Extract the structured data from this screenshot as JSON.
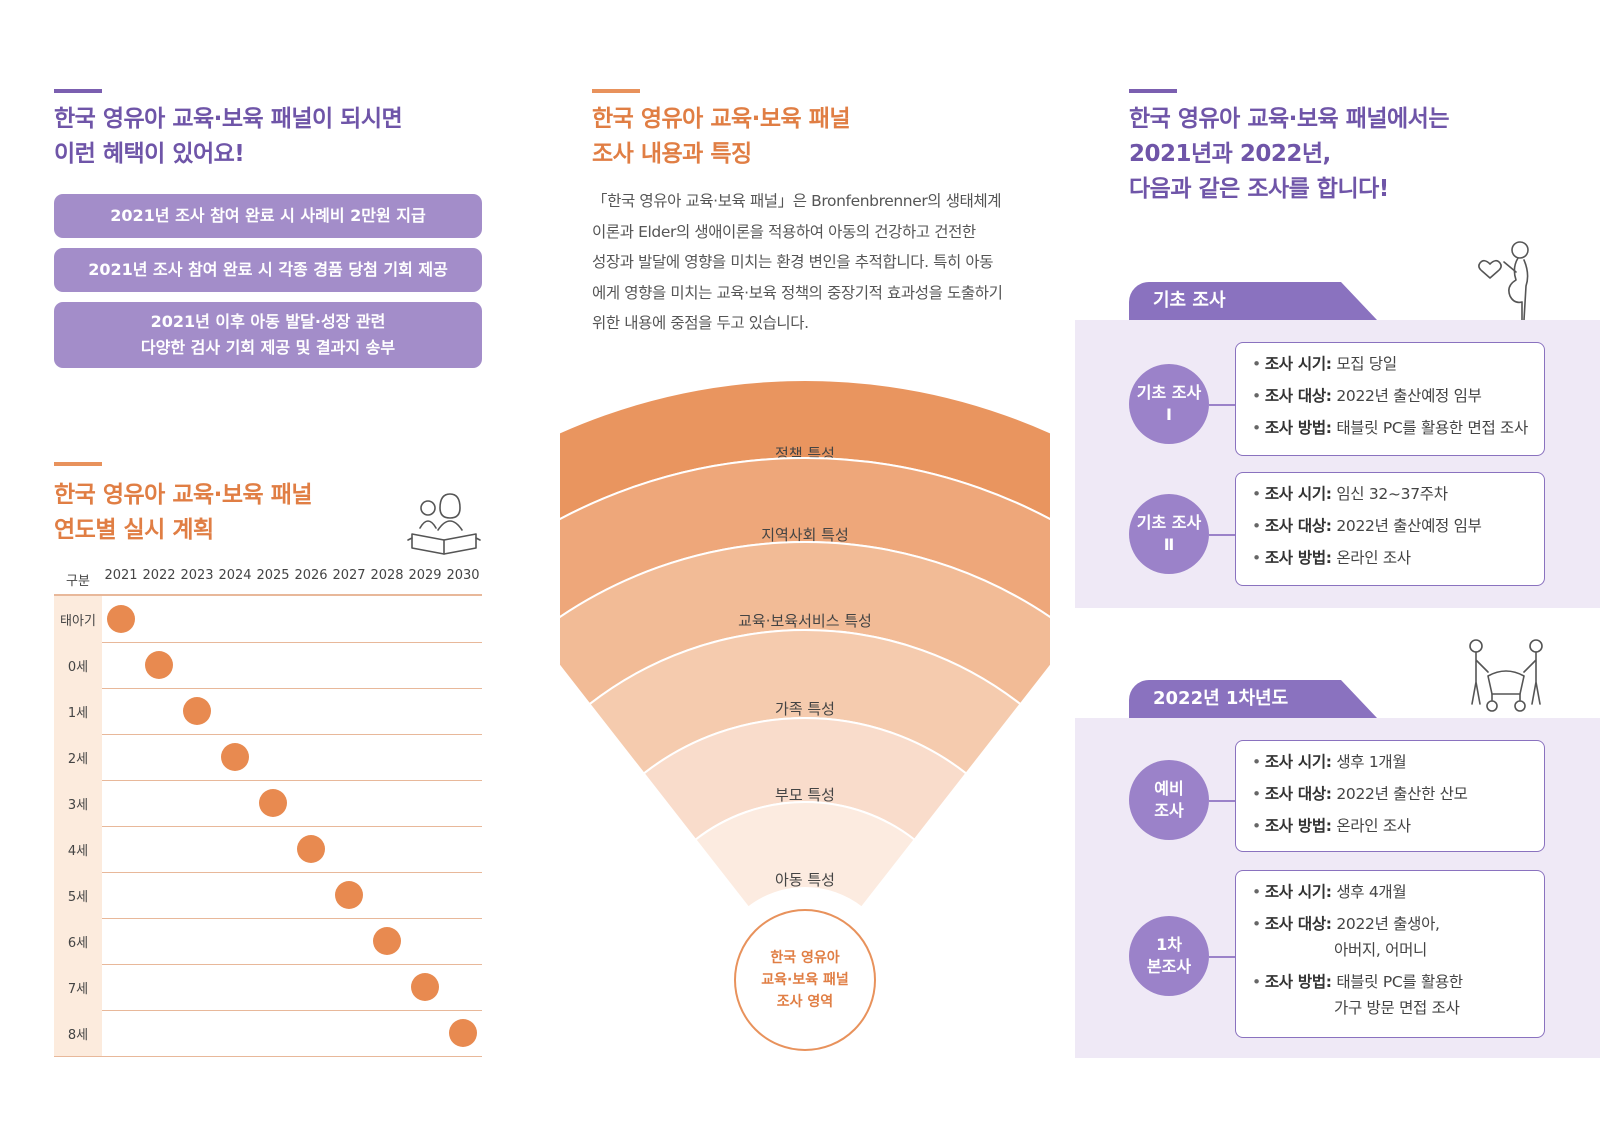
{
  "left": {
    "benefits_title": [
      "한국 영유아 교육·보육 패널이 되시면",
      "이런 혜택이 있어요!"
    ],
    "benefits": [
      [
        "2021년 조사 참여 완료 시 사례비 2만원 지급"
      ],
      [
        "2021년 조사 참여 완료 시 각종 경품 당첨 기회 제공"
      ],
      [
        "2021년 이후 아동 발달·성장 관련",
        "다양한 검사 기회 제공 및 결과지 송부"
      ]
    ],
    "plan_title": [
      "한국 영유아 교육·보육 패널",
      "연도별 실시 계획"
    ],
    "plan_icon": "parents-reading-book-icon",
    "table": {
      "header_label": "구분",
      "years": [
        "2021",
        "2022",
        "2023",
        "2024",
        "2025",
        "2026",
        "2027",
        "2028",
        "2029",
        "2030"
      ],
      "rows": [
        {
          "label": "태아기",
          "year": "2021"
        },
        {
          "label": "0세",
          "year": "2022"
        },
        {
          "label": "1세",
          "year": "2023"
        },
        {
          "label": "2세",
          "year": "2024"
        },
        {
          "label": "3세",
          "year": "2025"
        },
        {
          "label": "4세",
          "year": "2026"
        },
        {
          "label": "5세",
          "year": "2027"
        },
        {
          "label": "6세",
          "year": "2028"
        },
        {
          "label": "7세",
          "year": "2029"
        },
        {
          "label": "8세",
          "year": "2030"
        }
      ],
      "dot_color": "#e88a50"
    }
  },
  "middle": {
    "title": [
      "한국 영유아 교육·보육 패널",
      "조사 내용과 특징"
    ],
    "description": [
      "「한국 영유아 교육·보육 패널」은 Bronfenbrenner의 생태체계",
      "이론과 Elder의 생애이론을 적용하여 아동의 건강하고 건전한",
      "성장과 발달에 영향을 미치는 환경 변인을 추적합니다. 특히 아동",
      "에게 영향을 미치는 교육·보육 정책의 중장기적 효과성을 도출하기",
      "위한 내용에 중점을 두고 있습니다."
    ],
    "funnel_layers": [
      "정책 특성",
      "지역사회 특성",
      "교육·보육서비스 특성",
      "가족 특성",
      "부모 특성",
      "아동 특성"
    ],
    "funnel_colors": [
      "#e9955f",
      "#eea77a",
      "#f2bb96",
      "#f5cbae",
      "#f9dccb",
      "#fcebe0"
    ],
    "center_circle": [
      "한국 영유아",
      "교육·보육 패널",
      "조사 영역"
    ]
  },
  "right": {
    "title": [
      "한국 영유아 교육·보육 패널에서는",
      "2021년과 2022년,",
      "다음과 같은 조사를 합니다!"
    ],
    "sections": [
      {
        "tab": "기초 조사",
        "icon": "pregnant-woman-icon",
        "items": [
          {
            "circle": [
              "기초 조사",
              "Ⅰ"
            ],
            "lines": [
              {
                "label": "조사 시기:",
                "value": [
                  "모집 당일"
                ]
              },
              {
                "label": "조사 대상:",
                "value": [
                  "2022년 출산예정 임부"
                ]
              },
              {
                "label": "조사 방법:",
                "value": [
                  "태블릿 PC를 활용한 면접 조사"
                ]
              }
            ]
          },
          {
            "circle": [
              "기초 조사",
              "Ⅱ"
            ],
            "lines": [
              {
                "label": "조사 시기:",
                "value": [
                  "임신 32~37주차"
                ]
              },
              {
                "label": "조사 대상:",
                "value": [
                  "2022년 출산예정 임부"
                ]
              },
              {
                "label": "조사 방법:",
                "value": [
                  "온라인 조사"
                ]
              }
            ]
          }
        ]
      },
      {
        "tab": "2022년 1차년도",
        "icon": "parents-with-stroller-icon",
        "items": [
          {
            "circle": [
              "예비",
              "조사"
            ],
            "lines": [
              {
                "label": "조사 시기:",
                "value": [
                  "생후 1개월"
                ]
              },
              {
                "label": "조사 대상:",
                "value": [
                  "2022년 출산한 산모"
                ]
              },
              {
                "label": "조사 방법:",
                "value": [
                  "온라인 조사"
                ]
              }
            ]
          },
          {
            "circle": [
              "1차",
              "본조사"
            ],
            "lines": [
              {
                "label": "조사 시기:",
                "value": [
                  "생후 4개월"
                ]
              },
              {
                "label": "조사 대상:",
                "value": [
                  "2022년 출생아,",
                  "아버지, 어머니"
                ]
              },
              {
                "label": "조사 방법:",
                "value": [
                  "태블릿 PC를 활용한",
                  "가구 방문 면접 조사"
                ]
              }
            ]
          }
        ]
      }
    ]
  }
}
